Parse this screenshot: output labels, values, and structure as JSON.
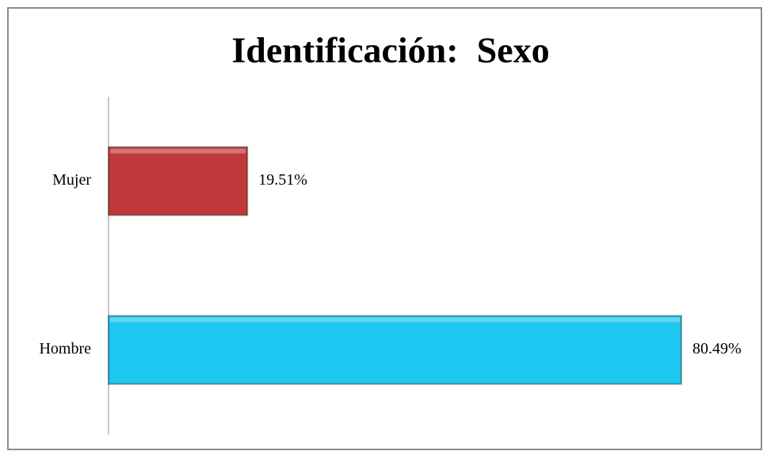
{
  "chart_data": {
    "type": "hbar",
    "title": "Identificación:  Sexo",
    "categories": [
      "Mujer",
      "Hombre"
    ],
    "values": [
      19.51,
      80.49
    ],
    "value_labels": [
      "19.51%",
      "80.49%"
    ],
    "colors": [
      "#c0393b",
      "#1ec8f0"
    ]
  }
}
